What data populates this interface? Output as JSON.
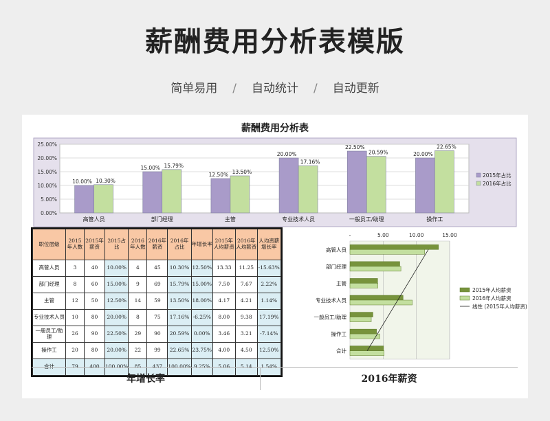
{
  "page": {
    "title": "薪酬费用分析表模版",
    "subtitle": [
      "简单易用",
      "自动统计",
      "自动更新"
    ],
    "sheet_title": "薪酬费用分析表",
    "footer_left": "年增长率",
    "footer_right": "2016年薪资"
  },
  "table": {
    "headers": [
      "职位层级",
      "2015年人数",
      "2015年薪资",
      "2015占比",
      "2016年人数",
      "2016年薪资",
      "2016年占比",
      "年增长率",
      "2015年人均薪资",
      "2016年人均薪资",
      "人均资薪增长率"
    ],
    "rows": [
      [
        "高管人员",
        "3",
        "40",
        "10.00%",
        "4",
        "45",
        "10.30%",
        "12.50%",
        "13.33",
        "11.25",
        "-15.63%"
      ],
      [
        "部门经理",
        "8",
        "60",
        "15.00%",
        "9",
        "69",
        "15.79%",
        "15.00%",
        "7.50",
        "7.67",
        "2.22%"
      ],
      [
        "主管",
        "12",
        "50",
        "12.50%",
        "14",
        "59",
        "13.50%",
        "18.00%",
        "4.17",
        "4.21",
        "1.14%"
      ],
      [
        "专业技术人员",
        "10",
        "80",
        "20.00%",
        "8",
        "75",
        "17.16%",
        "-6.25%",
        "8.00",
        "9.38",
        "17.19%"
      ],
      [
        "一般员工/助理",
        "26",
        "90",
        "22.50%",
        "29",
        "90",
        "20.59%",
        "0.00%",
        "3.46",
        "3.21",
        "-7.14%"
      ],
      [
        "操作工",
        "20",
        "80",
        "20.00%",
        "22",
        "99",
        "22.65%",
        "23.75%",
        "4.00",
        "4.50",
        "12.50%"
      ],
      [
        "合计",
        "79",
        "400",
        "100.00%",
        "85",
        "437",
        "100.00%",
        "9.25%",
        "5.06",
        "5.14",
        "1.54%"
      ]
    ]
  },
  "chart_data": [
    {
      "type": "bar",
      "title": "",
      "categories": [
        "高管人员",
        "部门经理",
        "主管",
        "专业技术人员",
        "一般员工/助理",
        "操作工"
      ],
      "series": [
        {
          "name": "2015年占比",
          "values": [
            10.0,
            15.0,
            12.5,
            20.0,
            22.5,
            20.0
          ],
          "labels": [
            "10.00%",
            "15.00%",
            "12.50%",
            "20.00%",
            "22.50%",
            "20.00%"
          ],
          "color": "#a99bc9"
        },
        {
          "name": "2016年占比",
          "values": [
            10.3,
            15.79,
            13.5,
            17.16,
            20.59,
            22.65
          ],
          "labels": [
            "10.30%",
            "15.79%",
            "13.50%",
            "17.16%",
            "20.59%",
            "22.65%"
          ],
          "color": "#c3df9f"
        }
      ],
      "ylim": [
        0,
        25
      ],
      "yticks": [
        "0.00%",
        "5.00%",
        "10.00%",
        "15.00%",
        "20.00%",
        "25.00%"
      ],
      "grid": true,
      "legend": "right"
    },
    {
      "type": "bar",
      "orientation": "horizontal",
      "title": "",
      "categories": [
        "高管人员",
        "部门经理",
        "主管",
        "专业技术人员",
        "一般员工/助理",
        "操作工",
        "合计"
      ],
      "series": [
        {
          "name": "2015年人均薪资",
          "values": [
            13.33,
            7.5,
            4.17,
            8.0,
            3.46,
            4.0,
            5.06
          ],
          "color": "#77933c"
        },
        {
          "name": "2016年人均薪资",
          "values": [
            11.25,
            7.67,
            4.21,
            9.38,
            3.21,
            4.5,
            5.14
          ],
          "color": "#c3df9f"
        }
      ],
      "trendline_label": "线性 (2015年人均薪资)",
      "xlim": [
        0,
        15
      ],
      "xticks": [
        "-",
        "5.00",
        "10.00",
        "15.00"
      ],
      "legend": "right"
    }
  ]
}
